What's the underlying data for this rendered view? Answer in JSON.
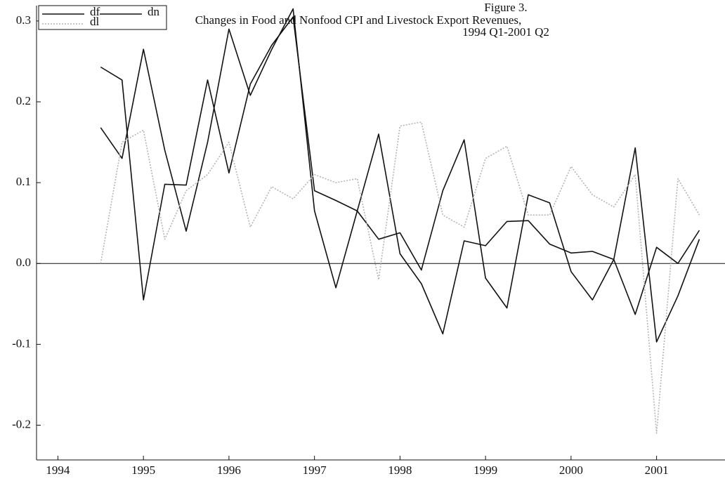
{
  "chart_data": {
    "type": "line",
    "title": [
      "Figure 3.",
      "Changes in Food and Nonfood CPI and Livestock Export Revenues,",
      "1994 Q1-2001 Q2"
    ],
    "x": [
      1994.5,
      1994.75,
      1995,
      1995.25,
      1995.5,
      1995.75,
      1996,
      1996.25,
      1996.5,
      1996.75,
      1997,
      1997.25,
      1997.5,
      1997.75,
      1998,
      1998.25,
      1998.5,
      1998.75,
      1999,
      1999.25,
      1999.5,
      1999.75,
      2000,
      2000.25,
      2000.5,
      2000.75,
      2001,
      2001.25,
      2001.5
    ],
    "series": [
      {
        "name": "df",
        "color": "#111111",
        "dash": "none",
        "values": [
          0.243,
          0.227,
          -0.045,
          0.098,
          0.097,
          0.227,
          0.112,
          0.222,
          0.27,
          0.305,
          0.09,
          0.078,
          0.065,
          0.03,
          0.038,
          -0.008,
          0.09,
          0.153,
          -0.018,
          -0.055,
          0.085,
          0.075,
          -0.01,
          -0.045,
          0.005,
          0.143,
          -0.097,
          -0.04,
          0.03
        ]
      },
      {
        "name": "dn",
        "color": "#111111",
        "dash": "none",
        "values": [
          0.168,
          0.13,
          0.265,
          0.14,
          0.04,
          0.15,
          0.29,
          0.208,
          0.265,
          0.315,
          0.065,
          -0.03,
          0.065,
          0.16,
          0.012,
          -0.025,
          -0.087,
          0.028,
          0.022,
          0.052,
          0.053,
          0.024,
          0.013,
          0.015,
          0.005,
          -0.063,
          0.02,
          0.0,
          0.041
        ]
      },
      {
        "name": "dl",
        "color": "#b5b5b5",
        "dash": "2 2",
        "values": [
          0.0,
          0.15,
          0.165,
          0.03,
          0.09,
          0.11,
          0.15,
          0.045,
          0.095,
          0.08,
          0.11,
          0.1,
          0.105,
          -0.02,
          0.17,
          0.175,
          0.06,
          0.045,
          0.13,
          0.145,
          0.06,
          0.06,
          0.12,
          0.085,
          0.07,
          0.11,
          -0.21,
          0.105,
          0.06
        ]
      }
    ],
    "xlim": [
      1993.75,
      2001.8
    ],
    "xticks": [
      1994,
      1995,
      1996,
      1997,
      1998,
      1999,
      2000,
      2001
    ],
    "ylim": [
      -0.243,
      0.319
    ],
    "yticks": [
      -0.2,
      -0.1,
      {
        "value": 0,
        "label": "0.0"
      },
      0.1,
      0.2,
      0.3
    ],
    "grid": false
  }
}
